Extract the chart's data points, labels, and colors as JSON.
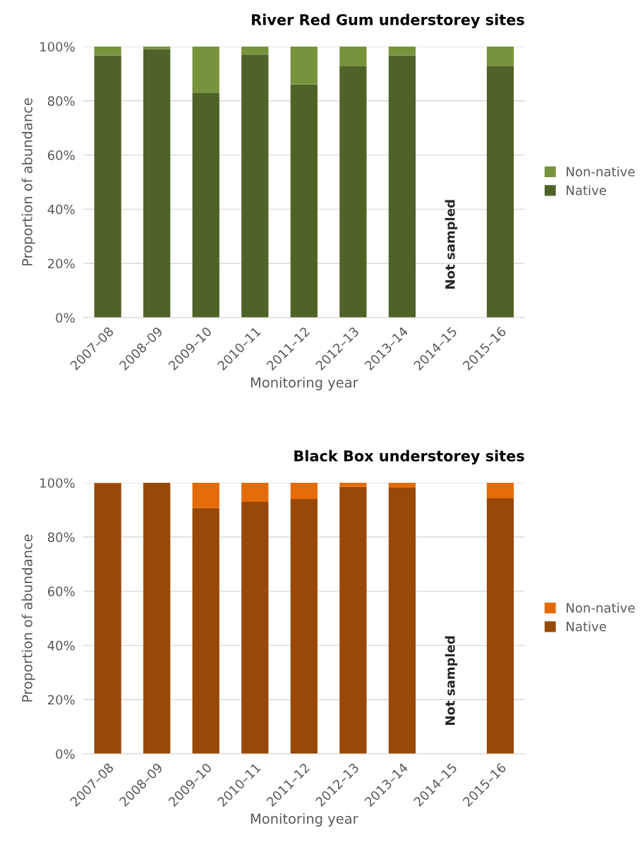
{
  "chart_data": [
    {
      "type": "bar",
      "title": "River Red Gum understorey sites",
      "xlabel": "Monitoring year",
      "ylabel": "Proportion of abundance",
      "stacked": true,
      "categories": [
        "2007–08",
        "2008–09",
        "2009–10",
        "2010–11",
        "2011–12",
        "2012–13",
        "2013–14",
        "2014–15",
        "2015–16"
      ],
      "series": [
        {
          "name": "Native",
          "color": "#4f6228",
          "values": [
            96.7,
            99.1,
            83,
            97.1,
            86.1,
            92.9,
            96.7,
            null,
            92.9
          ]
        },
        {
          "name": "Non-native",
          "color": "#77933c",
          "values": [
            3.3,
            0.9,
            17,
            2.9,
            13.9,
            7.1,
            3.3,
            null,
            7.1
          ]
        }
      ],
      "ylim": [
        0,
        100
      ],
      "yticks": [
        {
          "value": 0,
          "label": "0%"
        },
        {
          "value": 20,
          "label": "20%"
        },
        {
          "value": 40,
          "label": "40%"
        },
        {
          "value": 60,
          "label": "60%"
        },
        {
          "value": 80,
          "label": "80%"
        },
        {
          "value": 100,
          "label": "100%"
        }
      ],
      "grid": "y",
      "legend": "right",
      "annotations": [
        "Not sampled"
      ]
    },
    {
      "type": "bar",
      "title": "Black Box understorey sites",
      "xlabel": "Monitoring year",
      "ylabel": "Proportion of abundance",
      "stacked": true,
      "categories": [
        "2007–08",
        "2008–09",
        "2009–10",
        "2010–11",
        "2011–12",
        "2012–13",
        "2013–14",
        "2014–15",
        "2015–16"
      ],
      "series": [
        {
          "name": "Native",
          "color": "#984807",
          "values": [
            99.8,
            100,
            90.7,
            93,
            94,
            98.6,
            98.2,
            null,
            94.3
          ]
        },
        {
          "name": "Non-native",
          "color": "#e36c09",
          "values": [
            0.2,
            0,
            9.3,
            7,
            6,
            1.4,
            1.8,
            null,
            5.7
          ]
        }
      ],
      "ylim": [
        0,
        100
      ],
      "yticks": [
        {
          "value": 0,
          "label": "0%"
        },
        {
          "value": 20,
          "label": "20%"
        },
        {
          "value": 40,
          "label": "40%"
        },
        {
          "value": 60,
          "label": "60%"
        },
        {
          "value": 80,
          "label": "80%"
        },
        {
          "value": 100,
          "label": "100%"
        }
      ],
      "grid": "y",
      "legend": "right",
      "annotations": [
        "Not sampled"
      ]
    }
  ]
}
